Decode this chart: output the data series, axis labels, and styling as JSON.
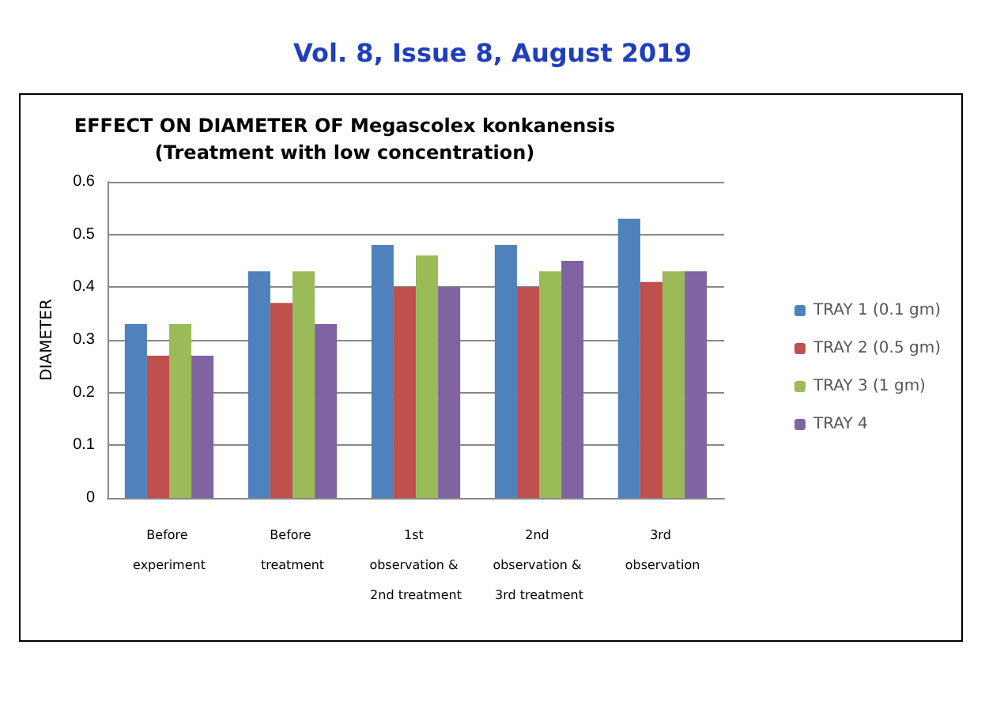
{
  "chart_data": {
    "type": "bar",
    "title": "EFFECT ON DIAMETER OF Megascolex konkanensis\n(Treatment with low concentration)",
    "annotations": [
      "Vol. 8, Issue 8, August 2019"
    ],
    "ylabel": "DIAMETER",
    "categories": [
      "Before experiment",
      "Before treatment",
      "1st observation & 2nd treatment",
      "2nd observation & 3rd treatment",
      "3rd observation"
    ],
    "series": [
      {
        "name": "TRAY 1 (0.1 gm)",
        "color": "#4f81bd",
        "values": [
          0.33,
          0.43,
          0.48,
          0.48,
          0.53
        ]
      },
      {
        "name": "TRAY 2 (0.5 gm)",
        "color": "#c0504d",
        "values": [
          0.27,
          0.37,
          0.4,
          0.4,
          0.41
        ]
      },
      {
        "name": "TRAY 3 (1 gm)",
        "color": "#9bbb59",
        "values": [
          0.33,
          0.43,
          0.46,
          0.43,
          0.43
        ]
      },
      {
        "name": "TRAY 4",
        "color": "#8064a2",
        "values": [
          0.27,
          0.33,
          0.4,
          0.45,
          0.43
        ]
      }
    ],
    "ylim": [
      0,
      0.6
    ],
    "yticks": [
      0,
      0.1,
      0.2,
      0.3,
      0.4,
      0.5,
      0.6
    ],
    "grid": "y",
    "legend": "right"
  }
}
